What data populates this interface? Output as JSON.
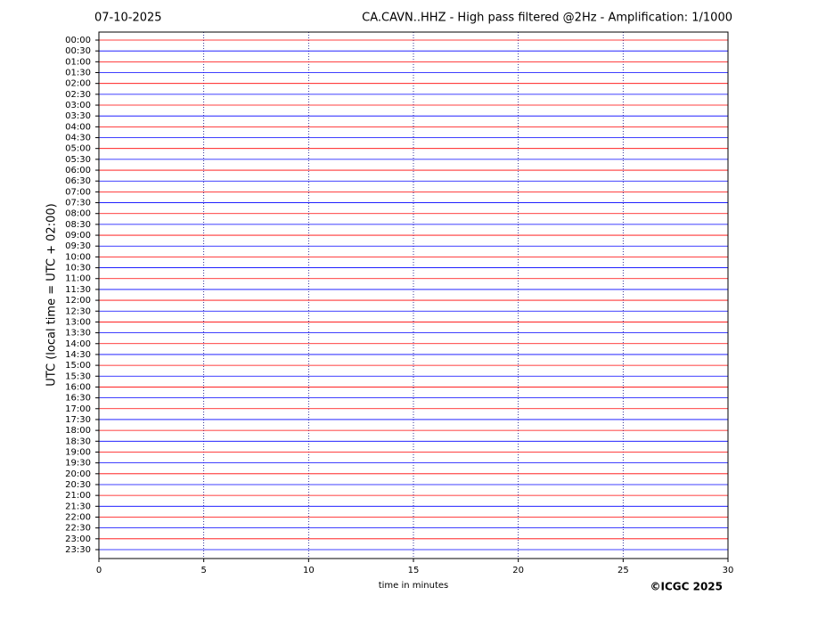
{
  "chart_data": {
    "type": "helicorder",
    "date": "07-10-2025",
    "title": "CA.CAVN..HHZ - High pass filtered @2Hz - Amplification: 1/1000",
    "xlabel": "time in minutes",
    "ylabel": "UTC (local time = UTC + 02:00)",
    "copyright": "©ICGC 2025",
    "categories": [
      "00:00",
      "00:30",
      "01:00",
      "01:30",
      "02:00",
      "02:30",
      "03:00",
      "03:30",
      "04:00",
      "04:30",
      "05:00",
      "05:30",
      "06:00",
      "06:30",
      "07:00",
      "07:30",
      "08:00",
      "08:30",
      "09:00",
      "09:30",
      "10:00",
      "10:30",
      "11:00",
      "11:30",
      "12:00",
      "12:30",
      "13:00",
      "13:30",
      "14:00",
      "14:30",
      "15:00",
      "15:30",
      "16:00",
      "16:30",
      "17:00",
      "17:30",
      "18:00",
      "18:30",
      "19:00",
      "19:30",
      "20:00",
      "20:30",
      "21:00",
      "21:30",
      "22:00",
      "22:30",
      "23:00",
      "23:30"
    ],
    "colors": [
      "#ff0000",
      "#0000ff"
    ],
    "xlim": [
      0,
      30
    ],
    "xticks": [
      0,
      5,
      10,
      15,
      20,
      25,
      30
    ],
    "grid": "x"
  }
}
